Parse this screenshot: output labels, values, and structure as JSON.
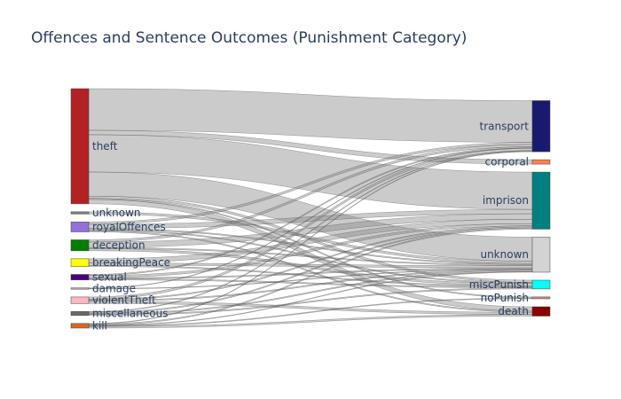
{
  "chart_data": {
    "type": "sankey",
    "title": "Offences and Sentence Outcomes (Punishment Category)",
    "sources": [
      {
        "name": "theft",
        "color": "#b22222"
      },
      {
        "name": "unknown",
        "color": "#808080"
      },
      {
        "name": "royalOffences",
        "color": "#9370db"
      },
      {
        "name": "deception",
        "color": "#008000"
      },
      {
        "name": "breakingPeace",
        "color": "#ffff00"
      },
      {
        "name": "sexual",
        "color": "#4b0082"
      },
      {
        "name": "damage",
        "color": "#a9a9a9"
      },
      {
        "name": "violentTheft",
        "color": "#ffb6c1"
      },
      {
        "name": "miscellaneous",
        "color": "#696969"
      },
      {
        "name": "kill",
        "color": "#d2691e"
      }
    ],
    "targets": [
      {
        "name": "transport",
        "color": "#191970"
      },
      {
        "name": "corporal",
        "color": "#ff7f50"
      },
      {
        "name": "imprison",
        "color": "#008080"
      },
      {
        "name": "unknown",
        "color": "#d3d3d3"
      },
      {
        "name": "miscPunish",
        "color": "#00ffff"
      },
      {
        "name": "noPunish",
        "color": "#bc8f8f"
      },
      {
        "name": "death",
        "color": "#8b0000"
      }
    ],
    "flows": [
      [
        "theft",
        "transport",
        38
      ],
      [
        "theft",
        "corporal",
        4
      ],
      [
        "theft",
        "imprison",
        34
      ],
      [
        "theft",
        "unknown",
        22
      ],
      [
        "theft",
        "miscPunish",
        2
      ],
      [
        "theft",
        "noPunish",
        1
      ],
      [
        "theft",
        "death",
        4
      ],
      [
        "unknown",
        "unknown",
        2
      ],
      [
        "royalOffences",
        "transport",
        2
      ],
      [
        "royalOffences",
        "imprison",
        4
      ],
      [
        "royalOffences",
        "unknown",
        1
      ],
      [
        "royalOffences",
        "miscPunish",
        1
      ],
      [
        "royalOffences",
        "death",
        1
      ],
      [
        "deception",
        "transport",
        2
      ],
      [
        "deception",
        "imprison",
        5
      ],
      [
        "deception",
        "unknown",
        1
      ],
      [
        "deception",
        "miscPunish",
        2
      ],
      [
        "breakingPeace",
        "imprison",
        4
      ],
      [
        "breakingPeace",
        "unknown",
        2
      ],
      [
        "breakingPeace",
        "miscPunish",
        1
      ],
      [
        "sexual",
        "transport",
        1
      ],
      [
        "sexual",
        "imprison",
        2
      ],
      [
        "sexual",
        "unknown",
        1
      ],
      [
        "sexual",
        "miscPunish",
        1
      ],
      [
        "damage",
        "transport",
        0.5
      ],
      [
        "damage",
        "unknown",
        0.5
      ],
      [
        "violentTheft",
        "transport",
        2
      ],
      [
        "violentTheft",
        "imprison",
        1
      ],
      [
        "violentTheft",
        "unknown",
        1
      ],
      [
        "violentTheft",
        "death",
        2
      ],
      [
        "miscellaneous",
        "transport",
        0.6
      ],
      [
        "miscellaneous",
        "imprison",
        1
      ],
      [
        "miscellaneous",
        "unknown",
        1
      ],
      [
        "miscellaneous",
        "miscPunish",
        1
      ],
      [
        "kill",
        "transport",
        0.5
      ],
      [
        "kill",
        "imprison",
        1
      ],
      [
        "kill",
        "unknown",
        0.5
      ],
      [
        "kill",
        "noPunish",
        0.7
      ],
      [
        "kill",
        "death",
        1.5
      ]
    ]
  }
}
